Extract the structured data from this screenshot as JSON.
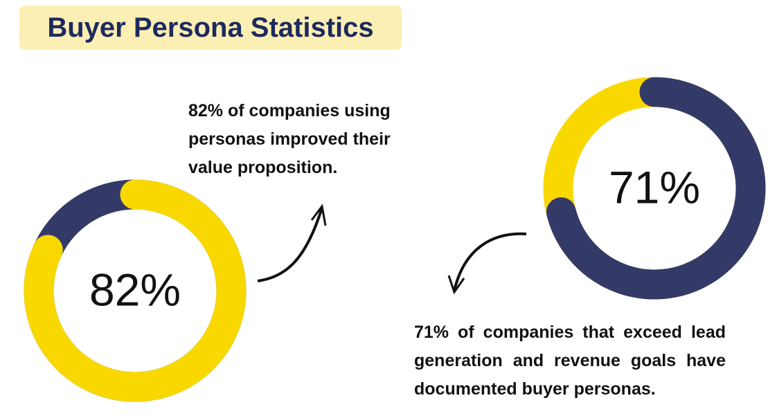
{
  "title": "Buyer Persona Statistics",
  "chart_data": [
    {
      "type": "donut",
      "values": [
        82
      ],
      "value_labels": [
        "82%"
      ],
      "color": "#f9d800",
      "track_color": "#343a68",
      "annotation": "82% of companies using personas improved their value proposition."
    },
    {
      "type": "donut",
      "values": [
        71
      ],
      "value_labels": [
        "71%"
      ],
      "color": "#343a68",
      "track_color": "#f9d800",
      "annotation": "71% of companies that exceed lead generation and revenue goals have documented buyer personas."
    }
  ]
}
